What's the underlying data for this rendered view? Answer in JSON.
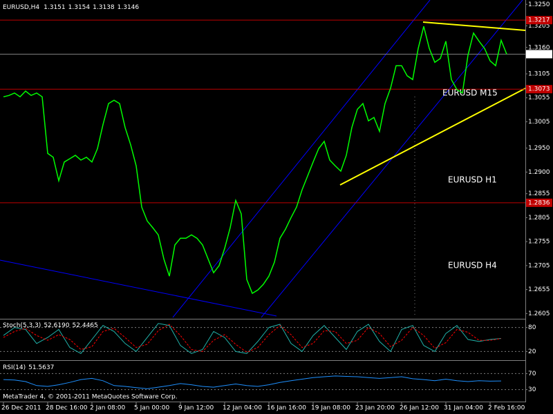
{
  "header": {
    "symbol": "EURUSD,H4",
    "ohlc": [
      1.3151,
      1.3154,
      1.3138,
      1.3146
    ]
  },
  "chart_data": [
    {
      "type": "line",
      "categories": [
        "26 Dec 2011",
        null,
        null,
        null,
        null,
        null,
        null,
        null,
        "28 Dec 16:00",
        null,
        null,
        null,
        null,
        null,
        null,
        null,
        "2 Jan 08:00",
        null,
        null,
        null,
        null,
        null,
        null,
        null,
        "5 Jan 00:00",
        null,
        null,
        null,
        null,
        null,
        null,
        null,
        "9 Jan 12:00",
        null,
        null,
        null,
        null,
        null,
        null,
        null,
        "12 Jan 04:00",
        null,
        null,
        null,
        null,
        null,
        null,
        null,
        "16 Jan 16:00",
        null,
        null,
        null,
        null,
        null,
        null,
        null,
        "19 Jan 08:00",
        null,
        null,
        null,
        null,
        null,
        null,
        null,
        "23 Jan 20:00",
        null,
        null,
        null,
        null,
        null,
        null,
        null,
        "26 Jan 12:00",
        null,
        null,
        null,
        null,
        null,
        null,
        null,
        "31 Jan 04:00",
        null,
        null,
        null,
        null,
        null,
        null,
        null,
        "2 Feb 16:00",
        null,
        null,
        null
      ],
      "series": [
        {
          "color": "#00ff00",
          "values": [
            1.3057,
            1.306,
            1.3065,
            1.3057,
            1.3069,
            1.306,
            1.3065,
            1.3057,
            1.2939,
            1.2931,
            1.2882,
            1.2921,
            1.2928,
            1.2935,
            1.2925,
            1.2931,
            1.2921,
            1.2949,
            1.2999,
            1.3043,
            1.305,
            1.3043,
            1.2993,
            1.2957,
            1.2913,
            1.2827,
            1.2798,
            1.2784,
            1.2769,
            1.2719,
            1.2683,
            1.2748,
            1.2762,
            1.2762,
            1.2769,
            1.2762,
            1.2748,
            1.2719,
            1.269,
            1.2705,
            1.2741,
            1.2784,
            1.2841,
            1.2813,
            1.2676,
            1.2647,
            1.2654,
            1.2666,
            1.2683,
            1.2712,
            1.2762,
            1.2781,
            1.2805,
            1.2827,
            1.2863,
            1.2892,
            1.2921,
            1.2949,
            1.2964,
            1.2925,
            1.2913,
            1.2902,
            1.2935,
            1.2993,
            1.3031,
            1.3043,
            1.3007,
            1.3014,
            1.2985,
            1.3043,
            1.3075,
            1.3122,
            1.3122,
            1.3101,
            1.3093,
            1.3158,
            1.3204,
            1.3158,
            1.3129,
            1.3137,
            1.3173,
            1.3093,
            1.3072,
            1.3065,
            1.3144,
            1.319,
            1.3173,
            1.3158,
            1.3132,
            1.3122,
            1.3175,
            1.3146
          ]
        }
      ],
      "ylim": [
        1.2594,
        1.3259
      ],
      "yticks": [
        {
          "value": 1.325,
          "label": "1.3250"
        },
        1.3205,
        {
          "value": 1.316,
          "label": "1.3160"
        },
        1.3105,
        1.3055,
        1.3005,
        {
          "value": 1.295,
          "label": "1.2950"
        },
        {
          "value": 1.29,
          "label": "1.2900"
        },
        1.2855,
        1.2805,
        1.2755,
        1.2705,
        1.2655,
        1.2605
      ],
      "hlines": [
        1.3217,
        1.3073,
        1.2836
      ],
      "hline_color": "#c00000",
      "current_price": 1.3146,
      "annotations": [
        "EURUSD M15",
        "EURUSD H1",
        "EURUSD H4"
      ]
    },
    {
      "type": "line",
      "title": "Stoch(5,3,3)",
      "legend_values": [
        "52.6190",
        "52.4465"
      ],
      "series": [
        {
          "color": "#20b2aa",
          "values": [
            60,
            80,
            75,
            40,
            55,
            75,
            30,
            15,
            50,
            85,
            70,
            40,
            20,
            55,
            90,
            85,
            35,
            15,
            25,
            70,
            55,
            20,
            15,
            45,
            80,
            88,
            40,
            20,
            60,
            85,
            55,
            25,
            70,
            88,
            45,
            20,
            75,
            85,
            35,
            20,
            65,
            85,
            50,
            45,
            50,
            52.619
          ]
        },
        {
          "color": "#ff0000",
          "dashed": true,
          "values": [
            55,
            70,
            78,
            60,
            48,
            62,
            50,
            25,
            32,
            70,
            78,
            55,
            30,
            38,
            72,
            88,
            60,
            25,
            20,
            48,
            62,
            38,
            18,
            30,
            62,
            85,
            62,
            30,
            40,
            72,
            70,
            40,
            48,
            80,
            65,
            32,
            48,
            80,
            60,
            28,
            42,
            75,
            68,
            48,
            48,
            52.4465
          ]
        }
      ],
      "ylim": [
        0,
        100
      ],
      "yticks": [
        80,
        20
      ]
    },
    {
      "type": "line",
      "title": "RSI(14)",
      "legend_values": [
        "51.5637"
      ],
      "series": [
        {
          "color": "#1e90ff",
          "values": [
            55,
            54,
            50,
            40,
            38,
            42,
            48,
            55,
            58,
            52,
            40,
            38,
            35,
            32,
            36,
            40,
            45,
            42,
            38,
            36,
            40,
            44,
            40,
            38,
            42,
            48,
            52,
            56,
            60,
            62,
            64,
            63,
            62,
            60,
            58,
            60,
            62,
            57,
            55,
            52,
            56,
            52,
            50,
            52,
            51,
            51.5637
          ]
        }
      ],
      "ylim": [
        0,
        100
      ],
      "yticks": [
        70,
        30
      ]
    }
  ],
  "footer": "MetaTrader 4, © 2001-2011 MetaQuotes Software Corp."
}
